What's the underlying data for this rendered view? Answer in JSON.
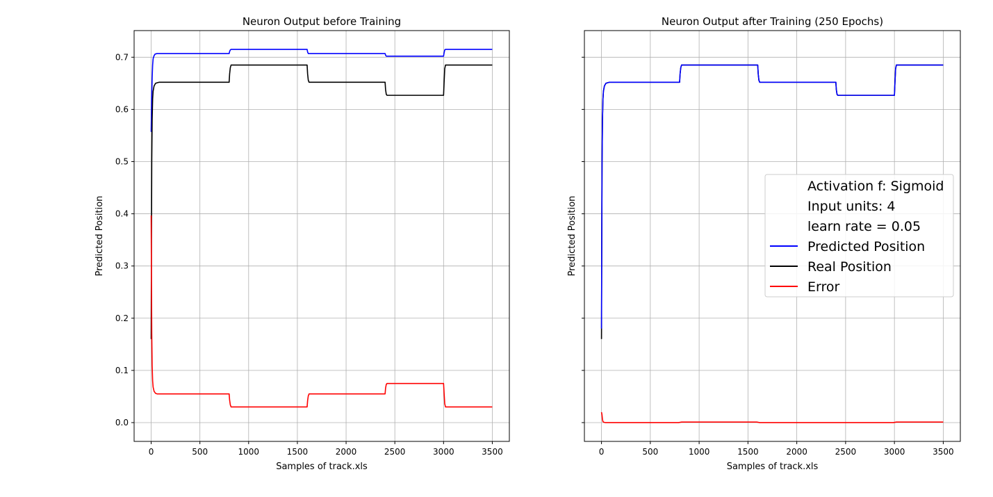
{
  "chart_data": [
    {
      "type": "line",
      "title": "Neuron Output before Training",
      "xlabel": "Samples of track.xls",
      "ylabel": "Predicted Position",
      "xlim": [
        -175,
        3675
      ],
      "ylim": [
        -0.036,
        0.751
      ],
      "xticks": [
        0,
        500,
        1000,
        1500,
        2000,
        2500,
        3000,
        3500
      ],
      "yticks": [
        0.0,
        0.1,
        0.2,
        0.3,
        0.4,
        0.5,
        0.6,
        0.7
      ],
      "grid": true,
      "series": [
        {
          "name": "Predicted Position",
          "color": "#0000ff",
          "x": [
            0,
            5,
            10,
            15,
            20,
            30,
            40,
            60,
            80,
            100,
            790,
            800,
            805,
            812,
            820,
            1590,
            1600,
            1605,
            1612,
            1620,
            2390,
            2400,
            2405,
            2412,
            2420,
            2990,
            3000,
            3005,
            3012,
            3020,
            3500
          ],
          "y": [
            0.557,
            0.62,
            0.66,
            0.685,
            0.697,
            0.703,
            0.706,
            0.707,
            0.707,
            0.707,
            0.707,
            0.707,
            0.711,
            0.714,
            0.715,
            0.715,
            0.715,
            0.71,
            0.707,
            0.707,
            0.707,
            0.707,
            0.704,
            0.702,
            0.702,
            0.702,
            0.702,
            0.708,
            0.714,
            0.715,
            0.715
          ]
        },
        {
          "name": "Real Position",
          "color": "#000000",
          "x": [
            0,
            3,
            6,
            10,
            15,
            20,
            30,
            45,
            60,
            80,
            100,
            790,
            800,
            805,
            812,
            820,
            1590,
            1600,
            1605,
            1612,
            1620,
            2390,
            2400,
            2405,
            2412,
            2420,
            2990,
            3000,
            3005,
            3012,
            3020,
            3500
          ],
          "y": [
            0.16,
            0.35,
            0.5,
            0.58,
            0.62,
            0.635,
            0.645,
            0.65,
            0.651,
            0.652,
            0.652,
            0.652,
            0.652,
            0.668,
            0.68,
            0.685,
            0.685,
            0.685,
            0.668,
            0.656,
            0.652,
            0.652,
            0.652,
            0.638,
            0.629,
            0.627,
            0.627,
            0.627,
            0.65,
            0.678,
            0.685,
            0.685
          ]
        },
        {
          "name": "Error",
          "color": "#ff0000",
          "x": [
            0,
            3,
            6,
            10,
            15,
            20,
            30,
            45,
            60,
            80,
            100,
            790,
            800,
            805,
            812,
            820,
            1590,
            1600,
            1605,
            1612,
            1620,
            2390,
            2400,
            2405,
            2412,
            2420,
            2990,
            3000,
            3005,
            3012,
            3020,
            3500
          ],
          "y": [
            0.397,
            0.27,
            0.17,
            0.11,
            0.08,
            0.068,
            0.06,
            0.056,
            0.055,
            0.055,
            0.055,
            0.055,
            0.055,
            0.043,
            0.034,
            0.03,
            0.03,
            0.03,
            0.042,
            0.051,
            0.055,
            0.055,
            0.055,
            0.066,
            0.073,
            0.075,
            0.075,
            0.075,
            0.058,
            0.036,
            0.03,
            0.03
          ]
        }
      ]
    },
    {
      "type": "line",
      "title": "Neuron Output after Training (250 Epochs)",
      "xlabel": "Samples of track.xls",
      "ylabel": "Predicted Position",
      "xlim": [
        -175,
        3675
      ],
      "ylim": [
        -0.036,
        0.751
      ],
      "xticks": [
        0,
        500,
        1000,
        1500,
        2000,
        2500,
        3000,
        3500
      ],
      "yticks": [
        0.0,
        0.1,
        0.2,
        0.3,
        0.4,
        0.5,
        0.6,
        0.7
      ],
      "show_ytick_labels": false,
      "grid": true,
      "legend": {
        "placement": "center-right",
        "entries": [
          {
            "label": "Activation f: Sigmoid",
            "color": ""
          },
          {
            "label": "Input units: 4",
            "color": ""
          },
          {
            "label": "learn rate = 0.05",
            "color": ""
          },
          {
            "label": "Predicted Position",
            "color": "#0000ff"
          },
          {
            "label": "Real Position",
            "color": "#000000"
          },
          {
            "label": "Error",
            "color": "#ff0000"
          }
        ]
      },
      "series": [
        {
          "name": "Real Position",
          "color": "#000000",
          "x": [
            0,
            3,
            6,
            10,
            15,
            20,
            30,
            45,
            60,
            80,
            100,
            790,
            800,
            805,
            812,
            820,
            1590,
            1600,
            1605,
            1612,
            1620,
            2390,
            2400,
            2405,
            2412,
            2420,
            2990,
            3000,
            3005,
            3012,
            3020,
            3500
          ],
          "y": [
            0.16,
            0.35,
            0.5,
            0.58,
            0.62,
            0.635,
            0.645,
            0.65,
            0.651,
            0.652,
            0.652,
            0.652,
            0.652,
            0.668,
            0.68,
            0.685,
            0.685,
            0.685,
            0.668,
            0.656,
            0.652,
            0.652,
            0.652,
            0.638,
            0.629,
            0.627,
            0.627,
            0.627,
            0.65,
            0.678,
            0.685,
            0.685
          ]
        },
        {
          "name": "Predicted Position",
          "color": "#0000ff",
          "x": [
            0,
            3,
            6,
            10,
            15,
            20,
            30,
            45,
            60,
            80,
            100,
            790,
            800,
            805,
            812,
            820,
            1590,
            1600,
            1605,
            1612,
            1620,
            2390,
            2400,
            2405,
            2412,
            2420,
            2990,
            3000,
            3005,
            3012,
            3020,
            3500
          ],
          "y": [
            0.18,
            0.36,
            0.5,
            0.58,
            0.62,
            0.635,
            0.645,
            0.65,
            0.651,
            0.652,
            0.652,
            0.652,
            0.652,
            0.668,
            0.68,
            0.685,
            0.685,
            0.685,
            0.668,
            0.656,
            0.652,
            0.652,
            0.652,
            0.638,
            0.629,
            0.627,
            0.627,
            0.627,
            0.65,
            0.678,
            0.685,
            0.685
          ]
        },
        {
          "name": "Error",
          "color": "#ff0000",
          "x": [
            0,
            5,
            10,
            15,
            20,
            40,
            100,
            790,
            820,
            1590,
            1620,
            2390,
            2420,
            2990,
            3020,
            3500
          ],
          "y": [
            0.02,
            0.015,
            0.006,
            0.002,
            0.001,
            0.0,
            0.0,
            0.0,
            0.001,
            0.001,
            0.0,
            0.0,
            0.0,
            0.0,
            0.001,
            0.001
          ]
        }
      ]
    }
  ]
}
